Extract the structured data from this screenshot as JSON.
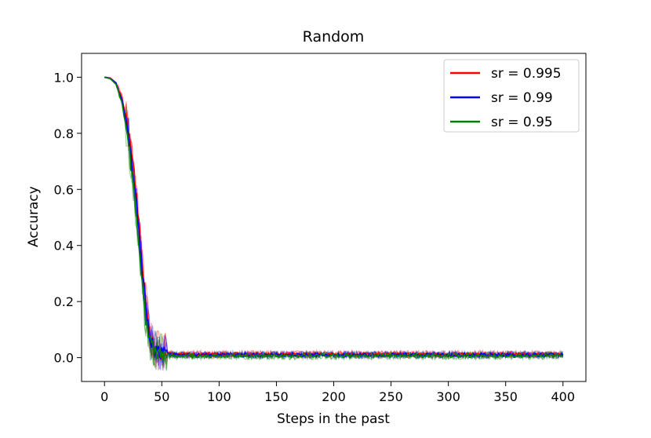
{
  "chart_data": {
    "type": "line",
    "title": "Random",
    "xlabel": "Steps in the past",
    "ylabel": "Accuracy",
    "xlim": [
      -20,
      420
    ],
    "ylim": [
      -0.085,
      1.085
    ],
    "xticks": [
      0,
      50,
      100,
      150,
      200,
      250,
      300,
      350,
      400
    ],
    "yticks": [
      0.0,
      0.2,
      0.4,
      0.6,
      0.8,
      1.0
    ],
    "xtick_labels": [
      "0",
      "50",
      "100",
      "150",
      "200",
      "250",
      "300",
      "350",
      "400"
    ],
    "ytick_labels": [
      "0.0",
      "0.2",
      "0.4",
      "0.6",
      "0.8",
      "1.0"
    ],
    "grid": false,
    "legend_position": "top-right",
    "x": [
      0,
      5,
      10,
      15,
      20,
      22,
      25,
      28,
      30,
      32,
      34,
      36,
      38,
      40,
      43,
      46,
      50,
      55,
      60,
      70,
      80,
      100,
      150,
      200,
      250,
      300,
      350,
      400
    ],
    "series": [
      {
        "name": "sr = 0.995",
        "color": "#ff0000",
        "values": [
          1.0,
          0.997,
          0.98,
          0.93,
          0.83,
          0.77,
          0.68,
          0.57,
          0.48,
          0.38,
          0.28,
          0.2,
          0.13,
          0.08,
          0.04,
          0.025,
          0.018,
          0.015,
          0.013,
          0.012,
          0.012,
          0.012,
          0.012,
          0.012,
          0.012,
          0.012,
          0.012,
          0.012
        ],
        "noise": 0.013
      },
      {
        "name": "sr = 0.99",
        "color": "#0000ff",
        "values": [
          1.0,
          0.996,
          0.98,
          0.92,
          0.82,
          0.76,
          0.66,
          0.55,
          0.46,
          0.36,
          0.26,
          0.18,
          0.12,
          0.07,
          0.035,
          0.02,
          0.014,
          0.012,
          0.011,
          0.01,
          0.01,
          0.01,
          0.01,
          0.01,
          0.01,
          0.01,
          0.01,
          0.01
        ],
        "noise": 0.013
      },
      {
        "name": "sr = 0.95",
        "color": "#008000",
        "values": [
          1.0,
          0.995,
          0.975,
          0.91,
          0.8,
          0.73,
          0.62,
          0.5,
          0.41,
          0.31,
          0.22,
          0.14,
          0.09,
          0.05,
          0.025,
          0.015,
          0.01,
          0.008,
          0.007,
          0.007,
          0.007,
          0.007,
          0.007,
          0.007,
          0.007,
          0.007,
          0.007,
          0.007
        ],
        "noise": 0.014
      }
    ]
  }
}
